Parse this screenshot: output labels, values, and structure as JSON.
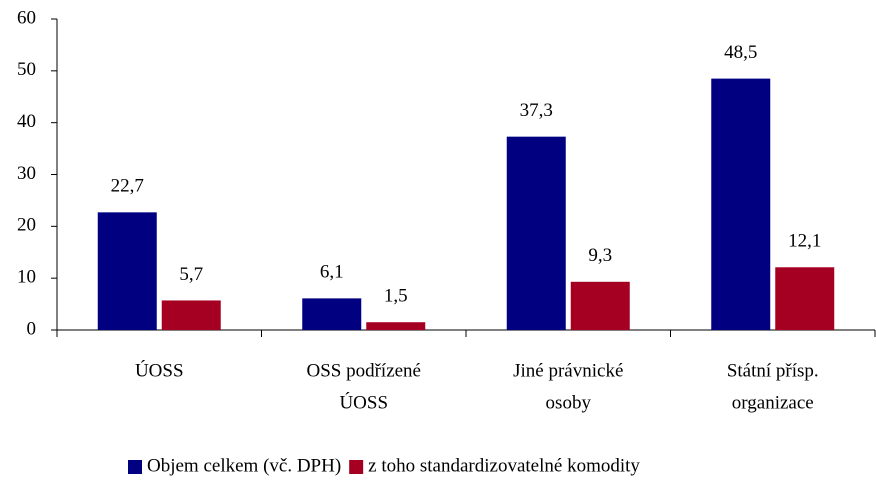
{
  "chart_data": {
    "type": "bar",
    "categories": [
      [
        "ÚOSS"
      ],
      [
        "OSS podřízené",
        "ÚOSS"
      ],
      [
        "Jiné právnické",
        "osoby"
      ],
      [
        "Státní přísp.",
        "organizace"
      ]
    ],
    "series": [
      {
        "name": "Objem celkem (vč. DPH)",
        "color": "#000080",
        "values": [
          22.7,
          6.1,
          37.3,
          48.5
        ],
        "value_labels": [
          "22,7",
          "6,1",
          "37,3",
          "48,5"
        ]
      },
      {
        "name": "z toho standardizovatelné komodity",
        "color": "#a50021",
        "values": [
          5.7,
          1.5,
          9.3,
          12.1
        ],
        "value_labels": [
          "5,7",
          "1,5",
          "9,3",
          "12,1"
        ]
      }
    ],
    "ylim": [
      0,
      60
    ],
    "yticks": [
      0,
      10,
      20,
      30,
      40,
      50,
      60
    ],
    "grid": false,
    "legend": "bottom"
  }
}
